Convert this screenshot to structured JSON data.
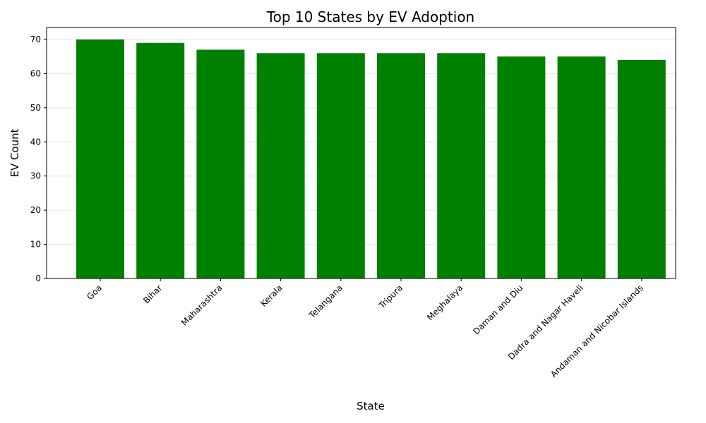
{
  "chart_data": {
    "type": "bar",
    "title": "Top 10 States by EV Adoption",
    "xlabel": "State",
    "ylabel": "EV Count",
    "categories": [
      "Goa",
      "Bihar",
      "Maharashtra",
      "Kerala",
      "Telangana",
      "Tripura",
      "Meghalaya",
      "Daman and Diu",
      "Dadra and Nagar Haveli",
      "Andaman and Nicobar Islands"
    ],
    "values": [
      70,
      69,
      67,
      66,
      66,
      66,
      66,
      65,
      65,
      64
    ],
    "yticks": [
      0,
      10,
      20,
      30,
      40,
      50,
      60,
      70
    ],
    "ylim": [
      0,
      73.5
    ],
    "grid": "horizontal",
    "bar_color": "#008000",
    "grid_color": "#e6e6e6"
  }
}
